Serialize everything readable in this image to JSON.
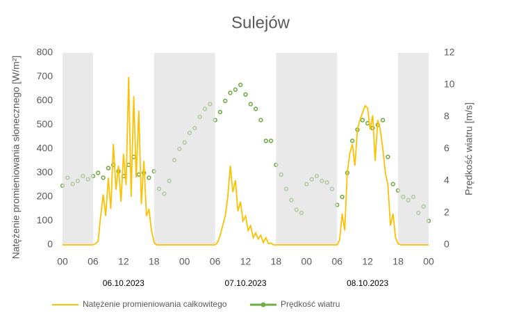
{
  "chart_data": {
    "type": "line",
    "title": "Sulejów",
    "ylabel": "Natężenie promieniowania słonecznego [W/m²]",
    "y2label": "Prędkość wiatru [m/s]",
    "xlim": [
      0,
      72
    ],
    "xticks": [
      {
        "value": 0,
        "label": "00"
      },
      {
        "value": 6,
        "label": "06"
      },
      {
        "value": 12,
        "label": "12"
      },
      {
        "value": 18,
        "label": "18"
      },
      {
        "value": 24,
        "label": "00"
      },
      {
        "value": 30,
        "label": "06"
      },
      {
        "value": 36,
        "label": "12"
      },
      {
        "value": 42,
        "label": "18"
      },
      {
        "value": 48,
        "label": "00"
      },
      {
        "value": 54,
        "label": "06"
      },
      {
        "value": 60,
        "label": "12"
      },
      {
        "value": 66,
        "label": "18"
      },
      {
        "value": 72,
        "label": "00"
      }
    ],
    "ylim": [
      0,
      800
    ],
    "yticks": [
      0,
      100,
      200,
      300,
      400,
      500,
      600,
      700,
      800
    ],
    "y2lim": [
      0,
      12
    ],
    "y2ticks": [
      0,
      2,
      4,
      6,
      8,
      10,
      12
    ],
    "shaded_ranges": [
      [
        0,
        6
      ],
      [
        18,
        30
      ],
      [
        42,
        54
      ],
      [
        66,
        72
      ]
    ],
    "annotations": [
      {
        "text": "06.10.2023",
        "x": 12
      },
      {
        "text": "07.10.2023",
        "x": 36
      },
      {
        "text": "08.10.2023",
        "x": 60
      }
    ],
    "series": [
      {
        "name": "Natężenie promieniowania całkowitego",
        "type": "line",
        "color": "#ffc000",
        "x": [
          0,
          6,
          6.5,
          7,
          7.5,
          8,
          8.5,
          9,
          9.5,
          10,
          10.5,
          11,
          11.5,
          12,
          12.5,
          13,
          13.5,
          14,
          14.5,
          15,
          15.5,
          16,
          16.5,
          17,
          17.5,
          18,
          18.5,
          30,
          30.5,
          31,
          31.5,
          32,
          32.5,
          33,
          33.5,
          34,
          34.5,
          35,
          35.5,
          36,
          36.5,
          37,
          37.5,
          38,
          38.5,
          39,
          39.5,
          40,
          40.5,
          41,
          41.5,
          54,
          54.5,
          55,
          55.5,
          56,
          56.5,
          57,
          57.5,
          58,
          58.5,
          59,
          59.5,
          60,
          60.5,
          61,
          61.5,
          62,
          62.5,
          63,
          63.5,
          64,
          64.5,
          65,
          65.5,
          66,
          66.5,
          72
        ],
        "values": [
          0,
          0,
          5,
          15,
          120,
          210,
          120,
          280,
          150,
          420,
          230,
          330,
          180,
          380,
          250,
          700,
          200,
          620,
          280,
          560,
          170,
          350,
          120,
          150,
          60,
          10,
          0,
          0,
          10,
          40,
          80,
          120,
          200,
          330,
          220,
          270,
          140,
          180,
          100,
          120,
          60,
          80,
          30,
          50,
          25,
          40,
          10,
          30,
          5,
          8,
          0,
          0,
          20,
          130,
          60,
          300,
          380,
          420,
          330,
          480,
          520,
          550,
          580,
          570,
          480,
          540,
          350,
          520,
          480,
          400,
          300,
          250,
          80,
          130,
          30,
          5,
          0,
          0
        ]
      },
      {
        "name": "Prędkość wiatru",
        "type": "scatter",
        "axis": "y2",
        "color": "#70ad47",
        "x": [
          0,
          1,
          2,
          3,
          4,
          5,
          6,
          7,
          8,
          9,
          10,
          11,
          12,
          13,
          14,
          15,
          16,
          17,
          18,
          19,
          20,
          21,
          22,
          23,
          24,
          25,
          26,
          27,
          28,
          29,
          30,
          31,
          32,
          33,
          34,
          35,
          36,
          37,
          38,
          39,
          40,
          41,
          42,
          43,
          44,
          45,
          46,
          47,
          48,
          49,
          50,
          51,
          52,
          53,
          54,
          55,
          56,
          57,
          58,
          59,
          60,
          61,
          62,
          63,
          64,
          65,
          66,
          67,
          68,
          69,
          70,
          71,
          72
        ],
        "values": [
          3.7,
          4.2,
          3.8,
          4.0,
          4.3,
          4.1,
          4.3,
          4.5,
          4.2,
          4.8,
          5.0,
          4.6,
          4.3,
          5.0,
          5.5,
          4.4,
          4.5,
          4.2,
          4.6,
          3.5,
          3.2,
          4.0,
          5.3,
          6.0,
          6.4,
          7.0,
          7.3,
          8.0,
          8.5,
          8.8,
          7.8,
          8.3,
          9.0,
          9.5,
          9.7,
          10.0,
          9.4,
          8.8,
          8.5,
          7.8,
          6.5,
          6.5,
          5.0,
          4.4,
          3.5,
          2.8,
          2.2,
          2.0,
          3.8,
          4.1,
          4.3,
          4.0,
          3.9,
          3.5,
          2.5,
          3.0,
          4.5,
          6.5,
          7.2,
          7.8,
          7.6,
          7.3,
          7.5,
          7.8,
          5.5,
          3.8,
          3.4,
          3.0,
          2.8,
          3.0,
          2.0,
          2.4,
          1.5
        ]
      }
    ]
  }
}
